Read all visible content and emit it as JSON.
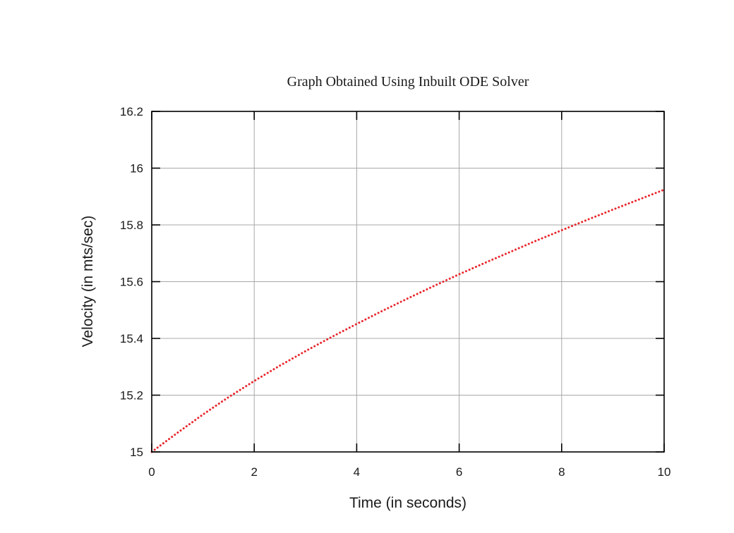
{
  "chart_data": {
    "type": "line",
    "title": "Graph Obtained Using Inbuilt ODE Solver",
    "xlabel": "Time (in seconds)",
    "ylabel": "Velocity (in mts/sec)",
    "xlim": [
      0,
      10
    ],
    "ylim": [
      15,
      16.2
    ],
    "xticks": [
      0,
      2,
      4,
      6,
      8,
      10
    ],
    "yticks": [
      15,
      15.2,
      15.4,
      15.6,
      15.8,
      16,
      16.2
    ],
    "xtick_labels": [
      "0",
      "2",
      "4",
      "6",
      "8",
      "10"
    ],
    "ytick_labels": [
      "15",
      "15.2",
      "15.4",
      "15.6",
      "15.8",
      "16",
      "16.2"
    ],
    "grid": true,
    "series": [
      {
        "color": "#e8282e",
        "style": "dotted",
        "x": [
          0,
          0.5,
          1,
          1.5,
          2,
          2.5,
          3,
          3.5,
          4,
          4.5,
          5,
          5.5,
          6,
          6.5,
          7,
          7.5,
          8,
          8.5,
          9,
          9.5,
          10
        ],
        "y": [
          15.0,
          15.067,
          15.132,
          15.193,
          15.25,
          15.304,
          15.355,
          15.404,
          15.451,
          15.497,
          15.541,
          15.584,
          15.626,
          15.666,
          15.705,
          15.744,
          15.781,
          15.818,
          15.854,
          15.889,
          15.924
        ]
      }
    ]
  }
}
